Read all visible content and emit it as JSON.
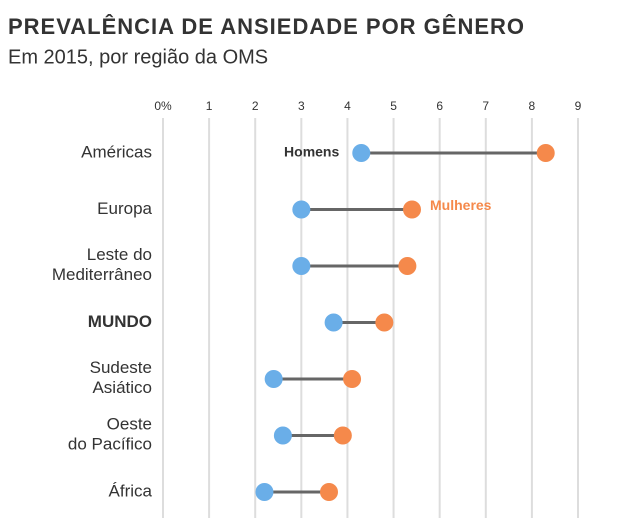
{
  "chart_data": {
    "type": "dumbbell",
    "title": "PREVALÊNCIA DE ANSIEDADE POR GÊNERO",
    "subtitle": "Em 2015, por região da OMS",
    "categories": [
      "Américas",
      "Europa",
      "Leste do\nMediterrâneo",
      "MUNDO",
      "Sudeste\nAsiático",
      "Oeste\ndo Pacífico",
      "África"
    ],
    "highlight_index": 3,
    "series": [
      {
        "name": "Homens",
        "color": "#6aaee8",
        "values": [
          4.3,
          3.0,
          3.0,
          3.7,
          2.4,
          2.6,
          2.2
        ]
      },
      {
        "name": "Mulheres",
        "color": "#f5894b",
        "values": [
          8.3,
          5.4,
          5.3,
          4.8,
          4.1,
          3.9,
          3.6
        ]
      }
    ],
    "xlim": [
      0,
      9
    ],
    "xticks": [
      {
        "value": 0,
        "label": "0%"
      },
      1,
      2,
      3,
      4,
      5,
      6,
      7,
      8,
      9
    ],
    "grid": true
  }
}
